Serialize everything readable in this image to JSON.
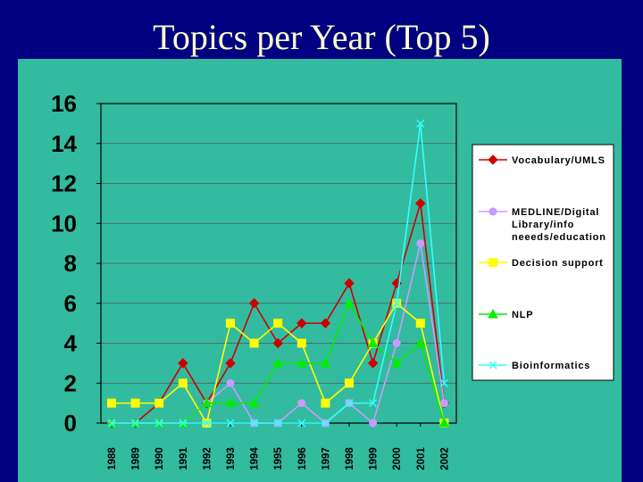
{
  "slide": {
    "title": "Topics per Year (Top 5)"
  },
  "colors": {
    "background": "#000080",
    "plot_bg": "#33bb9f",
    "title_text": "#ffffcc"
  },
  "chart_data": {
    "type": "line",
    "title": "Topics per Year (Top 5)",
    "x": [
      "1988",
      "1989",
      "1990",
      "1991",
      "1992",
      "1993",
      "1994",
      "1995",
      "1996",
      "1997",
      "1998",
      "1999",
      "2000",
      "2001",
      "2002"
    ],
    "ylim": [
      0,
      16
    ],
    "yticks": [
      "0",
      "2",
      "4",
      "6",
      "8",
      "10",
      "12",
      "14",
      "16"
    ],
    "grid": true,
    "legend_position": "right",
    "series": [
      {
        "name": "Vocabulary/UMLS",
        "legend_lines": [
          "Vocabulary/UMLS"
        ],
        "color": "#cc0000",
        "marker": "diamond",
        "values": [
          0,
          0,
          1,
          3,
          1,
          3,
          6,
          4,
          5,
          5,
          7,
          3,
          7,
          11,
          1
        ]
      },
      {
        "name": "MEDLINE/Digital Library/info neeeds/education",
        "legend_lines": [
          "MEDLINE/Digital",
          "Library/info",
          "neeeds/education"
        ],
        "color": "#cc99ff",
        "marker": "circle",
        "values": [
          0,
          0,
          0,
          0,
          1,
          2,
          0,
          0,
          1,
          0,
          1,
          0,
          4,
          9,
          1
        ]
      },
      {
        "name": "Decision support",
        "legend_lines": [
          "Decision support"
        ],
        "color": "#ffff00",
        "marker": "square",
        "values": [
          1,
          1,
          1,
          2,
          0,
          5,
          4,
          5,
          4,
          1,
          2,
          4,
          6,
          5,
          0
        ]
      },
      {
        "name": "NLP",
        "legend_lines": [
          "NLP"
        ],
        "color": "#00ee00",
        "marker": "triangle",
        "values": [
          0,
          0,
          0,
          0,
          1,
          1,
          1,
          3,
          3,
          3,
          6,
          4,
          3,
          4,
          0
        ]
      },
      {
        "name": "Bioinformatics",
        "legend_lines": [
          "Bioinformatics"
        ],
        "color": "#33ffff",
        "marker": "x",
        "values": [
          0,
          0,
          0,
          0,
          0,
          0,
          0,
          0,
          0,
          0,
          1,
          1,
          6,
          15,
          2
        ]
      }
    ]
  }
}
